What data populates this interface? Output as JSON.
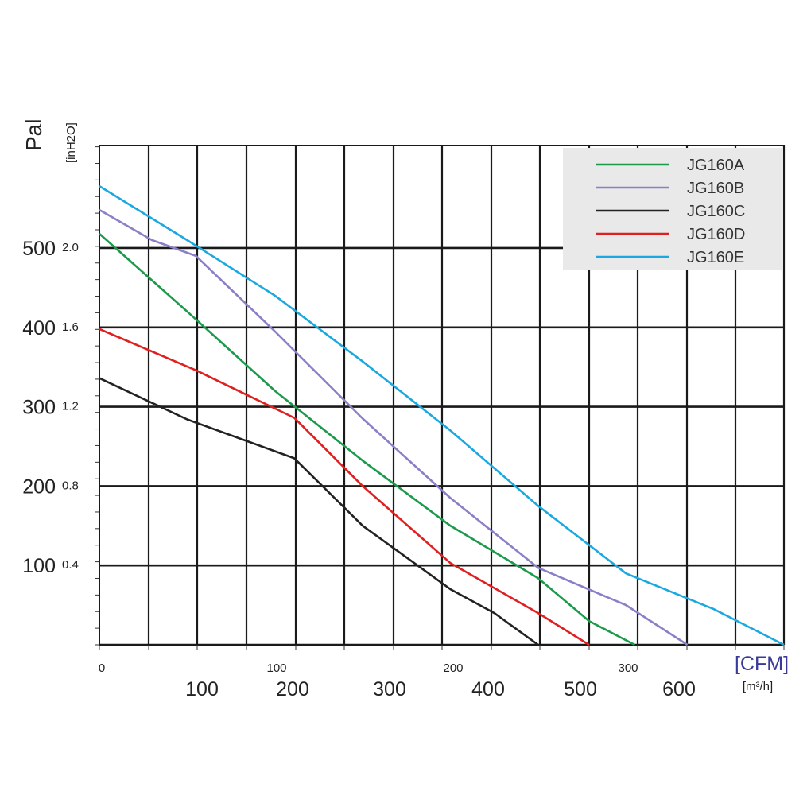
{
  "chart_data": {
    "type": "line",
    "title": "",
    "y_left_label": "Pal",
    "y_inner_label": "[inH2O]",
    "x_top_label": "[CFM]",
    "x_bottom_label": "[m³/h]",
    "y_pa_ticks": [
      "100",
      "200",
      "300",
      "400",
      "500"
    ],
    "y_inh2o_ticks": [
      "0.4",
      "0.8",
      "1.2",
      "1.6",
      "2.0"
    ],
    "x_cfm_ticks": [
      "0",
      "100",
      "200",
      "300"
    ],
    "x_m3h_ticks": [
      "100",
      "200",
      "300",
      "400",
      "500",
      "600"
    ],
    "pa_range": [
      0,
      600
    ],
    "cfm_range": [
      0,
      390
    ],
    "grid": true,
    "legend_position": "top-right",
    "series": [
      {
        "name": "JG160A",
        "color": "#1a9a4a",
        "x": [
          0,
          50,
          100,
          150,
          200,
          250,
          279,
          305
        ],
        "y": [
          518,
          420,
          320,
          232,
          150,
          84,
          30,
          0
        ]
      },
      {
        "name": "JG160B",
        "color": "#8a80c8",
        "x": [
          0,
          30,
          55,
          100,
          150,
          200,
          250,
          300,
          335
        ],
        "y": [
          548,
          510,
          490,
          395,
          285,
          185,
          97,
          50,
          0
        ]
      },
      {
        "name": "JG160C",
        "color": "#222222",
        "x": [
          0,
          50,
          111,
          150,
          200,
          225,
          250
        ],
        "y": [
          336,
          284,
          235,
          150,
          70,
          40,
          0
        ]
      },
      {
        "name": "JG160D",
        "color": "#e02020",
        "x": [
          0,
          55,
          111,
          150,
          200,
          250,
          279
        ],
        "y": [
          398,
          346,
          286,
          200,
          103,
          40,
          0
        ]
      },
      {
        "name": "JG160E",
        "color": "#1aa8e0",
        "x": [
          0,
          50,
          100,
          150,
          200,
          250,
          300,
          350,
          390
        ],
        "y": [
          578,
          510,
          440,
          357,
          270,
          175,
          90,
          45,
          0
        ]
      }
    ]
  }
}
